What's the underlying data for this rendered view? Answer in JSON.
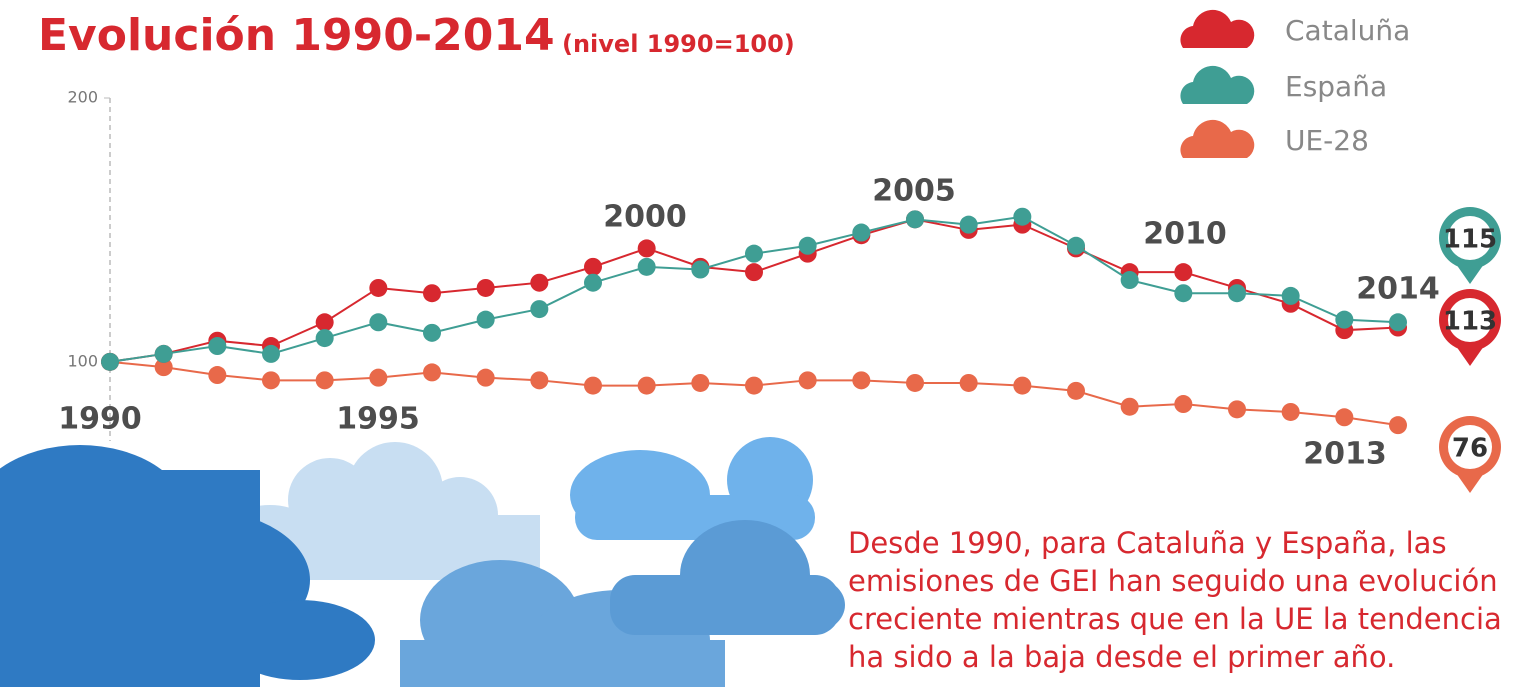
{
  "chart_data": {
    "type": "line",
    "title": "Evolución 1990-2014",
    "subtitle": "(nivel 1990=100)",
    "x": [
      1990,
      1991,
      1992,
      1993,
      1994,
      1995,
      1996,
      1997,
      1998,
      1999,
      2000,
      2001,
      2002,
      2003,
      2004,
      2005,
      2006,
      2007,
      2008,
      2009,
      2010,
      2011,
      2012,
      2013,
      2014
    ],
    "xlim": [
      1990,
      2014
    ],
    "ylim": [
      70,
      200
    ],
    "yticks": [
      100,
      200
    ],
    "series": [
      {
        "name": "Cataluña",
        "color": "#d7282f",
        "values": [
          100,
          103,
          108,
          106,
          115,
          128,
          126,
          128,
          130,
          136,
          143,
          136,
          134,
          141,
          148,
          154,
          150,
          152,
          143,
          134,
          134,
          128,
          122,
          112,
          113
        ]
      },
      {
        "name": "España",
        "color": "#3f9e94",
        "values": [
          100,
          103,
          106,
          103,
          109,
          115,
          111,
          116,
          120,
          130,
          136,
          135,
          141,
          144,
          149,
          154,
          152,
          155,
          144,
          131,
          126,
          126,
          125,
          116,
          115
        ]
      },
      {
        "name": "UE-28",
        "color": "#e8694a",
        "values": [
          100,
          98,
          95,
          93,
          93,
          94,
          96,
          94,
          93,
          91,
          91,
          92,
          91,
          93,
          93,
          92,
          92,
          91,
          89,
          83,
          84,
          82,
          81,
          79,
          76
        ]
      }
    ],
    "annotations": [
      "1990",
      "1995",
      "2000",
      "2005",
      "2010",
      "2014",
      "2013"
    ],
    "note": [
      "Desde 1990, para Cataluña y España, las",
      "emisiones de GEI han seguido una evolución",
      "creciente mientras que en la UE la tendencia",
      "ha sido a la baja desde el primer año."
    ]
  }
}
